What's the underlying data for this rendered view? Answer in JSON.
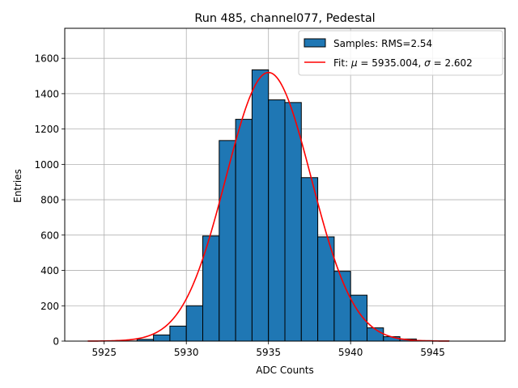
{
  "chart_data": {
    "type": "bar",
    "title": "Run 485, channel077, Pedestal",
    "xlabel": "ADC Counts",
    "ylabel": "Entries",
    "xlim": [
      5922.6,
      5949.4
    ],
    "ylim": [
      0,
      1770
    ],
    "grid": true,
    "legend_position": "top-right",
    "xticks": [
      5925,
      5930,
      5935,
      5940,
      5945
    ],
    "yticks": [
      0,
      200,
      400,
      600,
      800,
      1000,
      1200,
      1400,
      1600
    ],
    "bin_width": 1,
    "bin_left_edges": [
      5925,
      5926,
      5927,
      5928,
      5929,
      5930,
      5931,
      5932,
      5933,
      5934,
      5935,
      5936,
      5937,
      5938,
      5939,
      5940,
      5941,
      5942,
      5943,
      5944,
      5945
    ],
    "series": [
      {
        "name": "Samples: RMS=2.54",
        "kind": "histogram",
        "color": "#1f77b4",
        "edgecolor": "#000000",
        "values": [
          0,
          1,
          10,
          35,
          85,
          200,
          595,
          1135,
          1255,
          1535,
          1365,
          1350,
          925,
          590,
          395,
          260,
          75,
          25,
          12,
          3,
          1
        ]
      },
      {
        "name_prefix": "Fit: ",
        "name_mu_label": "μ",
        "name_mu_value": " = 5935.004, ",
        "name_sigma_label": "σ",
        "name_sigma_value": " = 2.602",
        "kind": "gaussian-fit",
        "color": "#ff0000",
        "mu": 5935.004,
        "sigma": 2.602,
        "amplitude": 1520,
        "x_range": [
          5924,
          5946
        ]
      }
    ]
  }
}
